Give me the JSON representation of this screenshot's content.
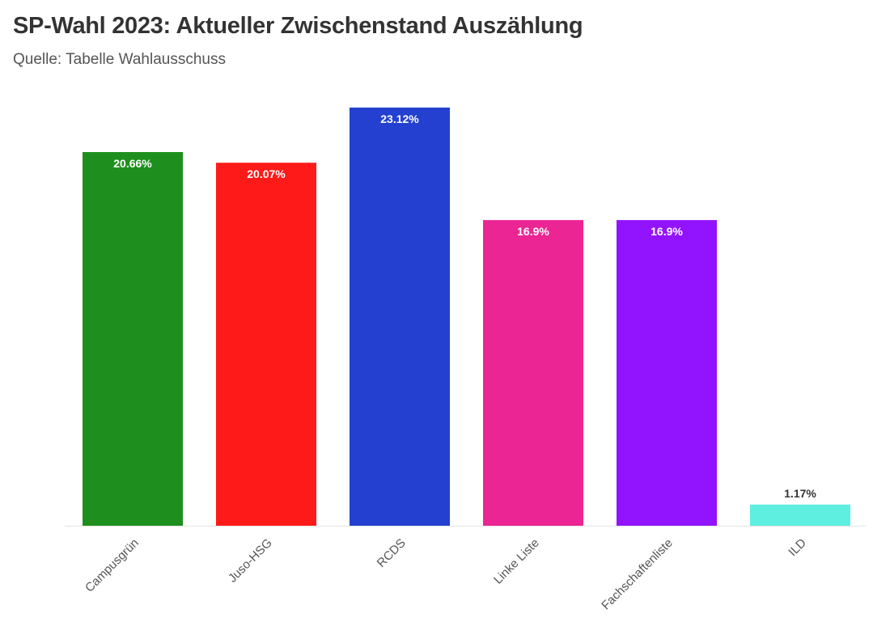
{
  "chart_data": {
    "type": "bar",
    "title": "SP-Wahl 2023: Aktueller Zwischenstand Auszählung",
    "subtitle": "Quelle: Tabelle Wahlausschuss",
    "categories": [
      "Campusgrün",
      "Juso-HSG",
      "RCDS",
      "Linke Liste",
      "Fachschaftenliste",
      "ILD"
    ],
    "values": [
      20.66,
      20.07,
      23.12,
      16.9,
      16.9,
      1.17
    ],
    "value_labels": [
      "20.66%",
      "20.07%",
      "23.12%",
      "16.9%",
      "16.9%",
      "1.17%"
    ],
    "colors": [
      "#1e8f1e",
      "#ff1a1a",
      "#2340d0",
      "#eb2593",
      "#9214ff",
      "#5eefe0"
    ],
    "ylim": [
      0,
      23.12
    ],
    "grid": false,
    "legend": "none"
  }
}
